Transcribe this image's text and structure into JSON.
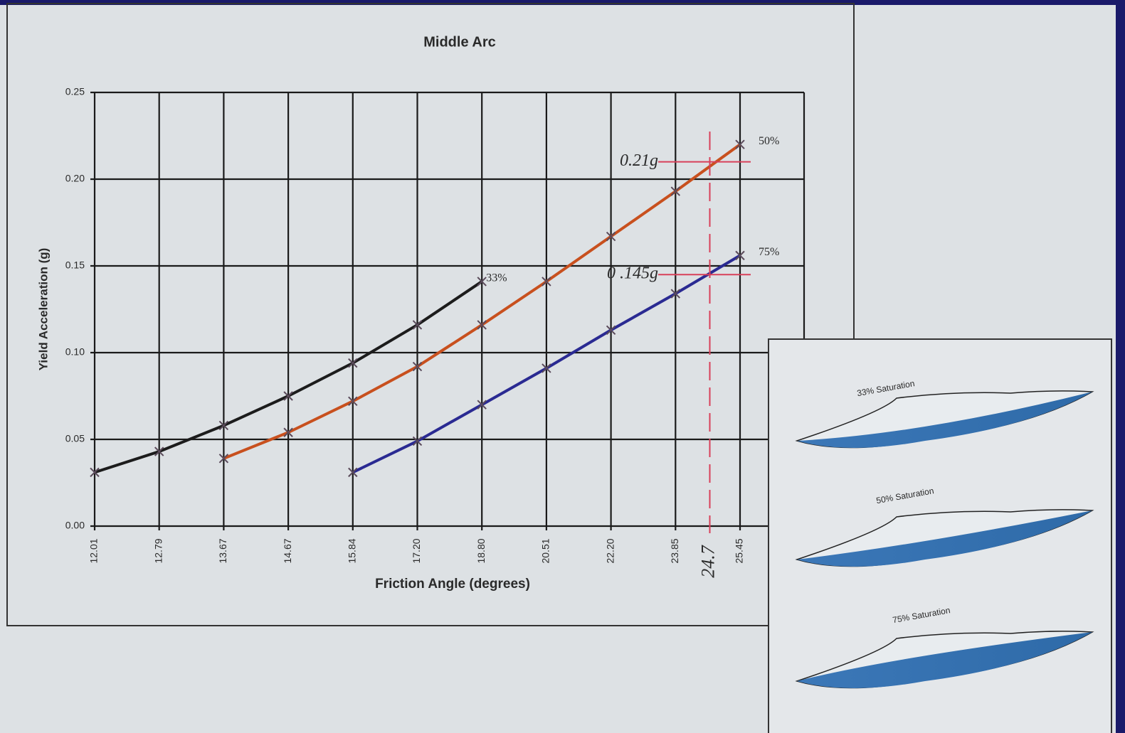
{
  "chart_data": {
    "type": "line",
    "title": "Middle Arc",
    "x_label": "Friction Angle (degrees)",
    "y_label": "Yield Acceleration (g)",
    "categories": [
      "12.01",
      "12.79",
      "13.67",
      "14.67",
      "15.84",
      "17.20",
      "18.80",
      "20.51",
      "22.20",
      "23.85",
      "25.45"
    ],
    "series": [
      {
        "name": "33%",
        "color": "#1c1c1c",
        "values": [
          0.031,
          0.043,
          0.058,
          0.075,
          0.094,
          0.116,
          0.141,
          null,
          null,
          null,
          null
        ]
      },
      {
        "name": "50%",
        "color": "#c8501e",
        "values": [
          null,
          null,
          0.039,
          0.054,
          0.072,
          0.092,
          0.116,
          0.141,
          0.167,
          0.193,
          0.22
        ]
      },
      {
        "name": "75%",
        "color": "#2a2a92",
        "values": [
          null,
          null,
          null,
          null,
          0.031,
          0.049,
          0.07,
          0.091,
          0.113,
          0.134,
          0.156
        ]
      }
    ],
    "ylim": [
      0,
      0.25
    ],
    "yticks": [
      {
        "value": 0,
        "label": "0.00"
      },
      {
        "value": 0.05,
        "label": "0.05"
      },
      {
        "value": 0.1,
        "label": "0.10"
      },
      {
        "value": 0.15,
        "label": "0.15"
      },
      {
        "value": 0.2,
        "label": "0.20"
      },
      {
        "value": 0.25,
        "label": "0.25"
      }
    ],
    "grid": true,
    "annotations": [
      {
        "label": "0.21g",
        "value": 0.21,
        "color": "#d8405a"
      },
      {
        "label": "0 .145g",
        "value": 0.145,
        "color": "#d8405a"
      },
      {
        "label": "24.7",
        "x": 24.7,
        "color": "#d8405a"
      }
    ],
    "inset_labels": [
      "33% Saturation",
      "50% Saturation",
      "75% Saturation"
    ]
  }
}
